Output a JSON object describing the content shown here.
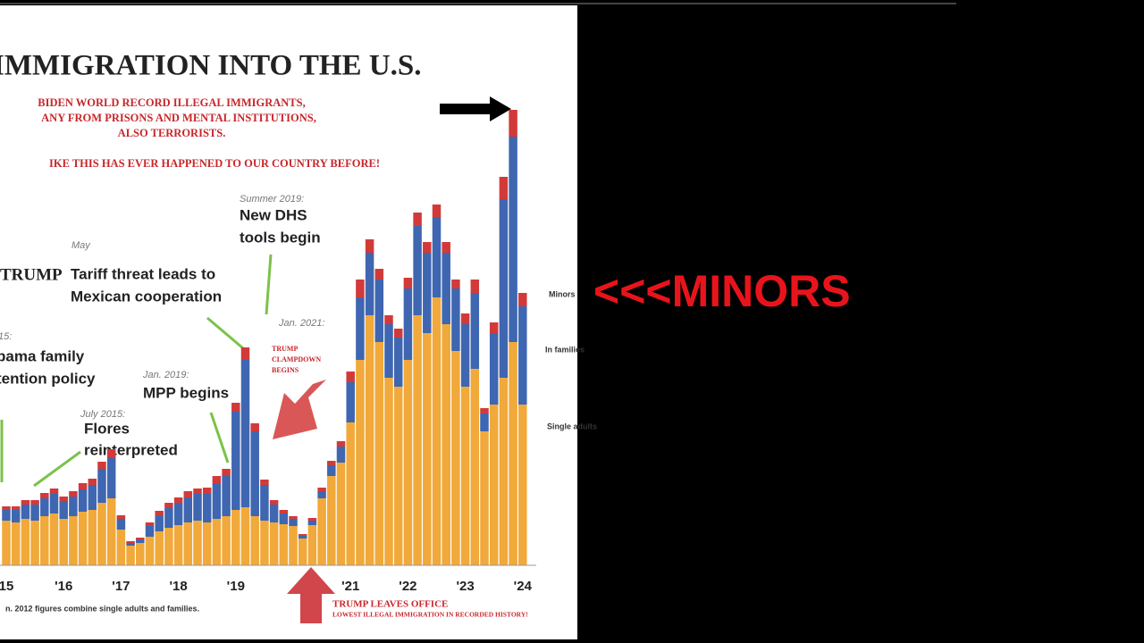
{
  "chart_data": {
    "type": "stacked-bar",
    "title": "IMMIGRATION INTO THE U.S.",
    "subtitle": [
      "BIDEN WORLD RECORD ILLEGAL IMMIGRANTS,",
      "ANY FROM PRISONS AND MENTAL INSTITUTIONS,",
      "ALSO TERRORISTS.",
      "IKE THIS HAS EVER HAPPENED TO OUR COUNTRY BEFORE!"
    ],
    "annotations": [
      "Summer 2019:",
      "New DHS",
      "tools begin",
      "May",
      "TRUMP",
      "Tariff threat leads to",
      "Mexican cooperation",
      "Jan. 2021:",
      "TRUMP",
      "CLAMPDOWN",
      "BEGINS",
      "15:",
      "bama family",
      "tention policy",
      "Jan. 2019:",
      "MPP begins",
      "July 2015:",
      "Flores",
      "reinterpreted",
      "TRUMP LEAVES OFFICE",
      "LOWEST ILLEGAL IMMIGRATION IN RECORDED HISTORY!"
    ],
    "note": "n. 2012 figures combine single adults and families.",
    "categories": [
      "15",
      null,
      null,
      null,
      null,
      null,
      "'16",
      null,
      null,
      null,
      null,
      null,
      "'17",
      null,
      null,
      null,
      null,
      null,
      "'18",
      null,
      null,
      null,
      null,
      null,
      "'19",
      null,
      null,
      null,
      null,
      null,
      null,
      null,
      null,
      null,
      null,
      null,
      "'21",
      null,
      null,
      null,
      null,
      null,
      "'22",
      null,
      null,
      null,
      null,
      null,
      "'23",
      null,
      null,
      null,
      null,
      null,
      "'24"
    ],
    "series": [
      {
        "name": "Single adults",
        "color": "#f0a93a",
        "values": [
          50,
          48,
          52,
          50,
          55,
          58,
          52,
          55,
          60,
          62,
          70,
          75,
          40,
          22,
          25,
          32,
          38,
          42,
          45,
          48,
          50,
          48,
          52,
          55,
          62,
          65,
          55,
          50,
          48,
          46,
          44,
          30,
          45,
          75,
          100,
          115,
          160,
          230,
          280,
          250,
          210,
          200,
          230,
          280,
          260,
          300,
          270,
          240,
          200,
          220,
          150,
          180,
          210,
          250,
          180
        ]
      },
      {
        "name": "In families",
        "color": "#3f66b0",
        "values": [
          12,
          14,
          16,
          18,
          20,
          22,
          20,
          22,
          25,
          28,
          38,
          45,
          12,
          3,
          4,
          12,
          18,
          22,
          25,
          28,
          30,
          32,
          40,
          45,
          110,
          165,
          95,
          40,
          20,
          12,
          8,
          3,
          5,
          8,
          12,
          18,
          45,
          70,
          70,
          70,
          60,
          55,
          80,
          100,
          90,
          90,
          80,
          70,
          70,
          85,
          20,
          80,
          200,
          230,
          110
        ]
      },
      {
        "name": "Minors",
        "color": "#d23a3a",
        "values": [
          4,
          4,
          5,
          5,
          6,
          6,
          5,
          6,
          7,
          7,
          8,
          10,
          4,
          2,
          2,
          4,
          5,
          6,
          6,
          7,
          6,
          7,
          8,
          8,
          10,
          14,
          9,
          6,
          5,
          4,
          3,
          2,
          3,
          4,
          5,
          6,
          12,
          20,
          15,
          12,
          10,
          10,
          12,
          15,
          12,
          14,
          12,
          10,
          12,
          15,
          6,
          12,
          25,
          30,
          15
        ]
      }
    ],
    "ylim": [
      0,
      540
    ]
  },
  "overlay": {
    "text": "<<<MINORS"
  }
}
